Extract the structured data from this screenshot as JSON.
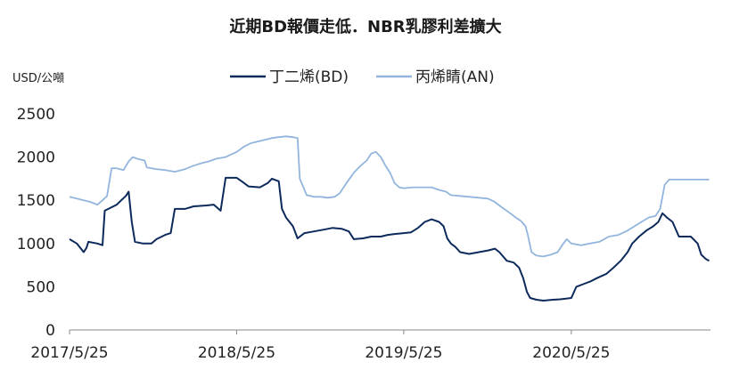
{
  "chart_data": {
    "type": "line",
    "title": "近期BD報價走低．NBR乳膠利差擴大",
    "ylabel": "USD/公噸",
    "ylim": [
      0,
      2500
    ],
    "yticks": [
      "2500",
      "2000",
      "1500",
      "1000",
      "500",
      "0"
    ],
    "xticks": [
      "2017/5/25",
      "2018/5/25",
      "2019/5/25",
      "2020/5/25"
    ],
    "xrange": [
      "2017/5/25",
      "2021/3/25"
    ],
    "legend_position": "top-center",
    "grid": false,
    "series": [
      {
        "name": "丁二烯(BD)",
        "color": "#0d2a5c",
        "points": [
          [
            "2017/5/25",
            1050
          ],
          [
            "2017/6/10",
            1000
          ],
          [
            "2017/6/25",
            900
          ],
          [
            "2017/7/1",
            950
          ],
          [
            "2017/7/5",
            1020
          ],
          [
            "2017/7/25",
            1000
          ],
          [
            "2017/8/5",
            980
          ],
          [
            "2017/8/10",
            1380
          ],
          [
            "2017/8/25",
            1420
          ],
          [
            "2017/9/5",
            1450
          ],
          [
            "2017/9/15",
            1500
          ],
          [
            "2017/9/25",
            1550
          ],
          [
            "2017/10/1",
            1600
          ],
          [
            "2017/10/8",
            1250
          ],
          [
            "2017/10/15",
            1020
          ],
          [
            "2017/11/1",
            1000
          ],
          [
            "2017/11/20",
            1000
          ],
          [
            "2017/12/1",
            1050
          ],
          [
            "2017/12/20",
            1100
          ],
          [
            "2018/1/1",
            1120
          ],
          [
            "2018/1/10",
            1400
          ],
          [
            "2018/2/1",
            1400
          ],
          [
            "2018/2/20",
            1430
          ],
          [
            "2018/3/20",
            1440
          ],
          [
            "2018/4/5",
            1450
          ],
          [
            "2018/4/20",
            1380
          ],
          [
            "2018/5/1",
            1760
          ],
          [
            "2018/5/25",
            1760
          ],
          [
            "2018/6/5",
            1720
          ],
          [
            "2018/6/20",
            1660
          ],
          [
            "2018/7/15",
            1650
          ],
          [
            "2018/8/1",
            1700
          ],
          [
            "2018/8/10",
            1750
          ],
          [
            "2018/8/25",
            1720
          ],
          [
            "2018/9/1",
            1400
          ],
          [
            "2018/9/10",
            1300
          ],
          [
            "2018/9/25",
            1200
          ],
          [
            "2018/10/5",
            1060
          ],
          [
            "2018/10/20",
            1120
          ],
          [
            "2018/11/10",
            1140
          ],
          [
            "2018/12/1",
            1160
          ],
          [
            "2018/12/20",
            1180
          ],
          [
            "2019/1/10",
            1170
          ],
          [
            "2019/1/25",
            1140
          ],
          [
            "2019/2/5",
            1050
          ],
          [
            "2019/2/25",
            1060
          ],
          [
            "2019/3/15",
            1080
          ],
          [
            "2019/4/5",
            1080
          ],
          [
            "2019/4/20",
            1100
          ],
          [
            "2019/5/5",
            1110
          ],
          [
            "2019/5/25",
            1120
          ],
          [
            "2019/6/10",
            1130
          ],
          [
            "2019/6/25",
            1180
          ],
          [
            "2019/7/10",
            1250
          ],
          [
            "2019/7/25",
            1280
          ],
          [
            "2019/8/10",
            1250
          ],
          [
            "2019/8/20",
            1200
          ],
          [
            "2019/8/28",
            1060
          ],
          [
            "2019/9/5",
            1000
          ],
          [
            "2019/9/15",
            960
          ],
          [
            "2019/9/25",
            900
          ],
          [
            "2019/10/15",
            880
          ],
          [
            "2019/11/5",
            900
          ],
          [
            "2019/11/25",
            920
          ],
          [
            "2019/12/10",
            940
          ],
          [
            "2019/12/20",
            900
          ],
          [
            "2020/1/5",
            800
          ],
          [
            "2020/1/20",
            780
          ],
          [
            "2020/2/1",
            720
          ],
          [
            "2020/2/10",
            600
          ],
          [
            "2020/2/18",
            440
          ],
          [
            "2020/2/25",
            370
          ],
          [
            "2020/3/10",
            350
          ],
          [
            "2020/3/25",
            340
          ],
          [
            "2020/4/15",
            350
          ],
          [
            "2020/5/1",
            355
          ],
          [
            "2020/5/25",
            370
          ],
          [
            "2020/6/5",
            500
          ],
          [
            "2020/6/20",
            530
          ],
          [
            "2020/7/5",
            560
          ],
          [
            "2020/7/20",
            600
          ],
          [
            "2020/8/10",
            650
          ],
          [
            "2020/8/25",
            720
          ],
          [
            "2020/9/10",
            800
          ],
          [
            "2020/9/25",
            900
          ],
          [
            "2020/10/5",
            1000
          ],
          [
            "2020/10/20",
            1080
          ],
          [
            "2020/11/5",
            1150
          ],
          [
            "2020/11/20",
            1200
          ],
          [
            "2020/12/1",
            1250
          ],
          [
            "2020/12/10",
            1350
          ],
          [
            "2020/12/20",
            1300
          ],
          [
            "2021/1/1",
            1250
          ],
          [
            "2021/1/15",
            1080
          ],
          [
            "2021/2/10",
            1080
          ],
          [
            "2021/2/25",
            1000
          ],
          [
            "2021/3/5",
            870
          ],
          [
            "2021/3/15",
            820
          ],
          [
            "2021/3/22",
            800
          ]
        ]
      },
      {
        "name": "丙烯睛(AN)",
        "color": "#93b5dd",
        "points": [
          [
            "2017/5/25",
            1540
          ],
          [
            "2017/6/10",
            1520
          ],
          [
            "2017/6/25",
            1500
          ],
          [
            "2017/7/10",
            1480
          ],
          [
            "2017/7/25",
            1450
          ],
          [
            "2017/8/5",
            1500
          ],
          [
            "2017/8/15",
            1550
          ],
          [
            "2017/8/25",
            1870
          ],
          [
            "2017/9/5",
            1870
          ],
          [
            "2017/9/20",
            1850
          ],
          [
            "2017/10/1",
            1950
          ],
          [
            "2017/10/10",
            2000
          ],
          [
            "2017/10/20",
            1980
          ],
          [
            "2017/11/5",
            1960
          ],
          [
            "2017/11/10",
            1880
          ],
          [
            "2017/12/1",
            1860
          ],
          [
            "2017/12/20",
            1850
          ],
          [
            "2018/1/10",
            1830
          ],
          [
            "2018/2/1",
            1860
          ],
          [
            "2018/2/20",
            1900
          ],
          [
            "2018/3/10",
            1930
          ],
          [
            "2018/3/25",
            1950
          ],
          [
            "2018/4/10",
            1980
          ],
          [
            "2018/5/1",
            2000
          ],
          [
            "2018/5/25",
            2060
          ],
          [
            "2018/6/10",
            2120
          ],
          [
            "2018/6/25",
            2160
          ],
          [
            "2018/7/10",
            2180
          ],
          [
            "2018/7/25",
            2200
          ],
          [
            "2018/8/10",
            2220
          ],
          [
            "2018/8/25",
            2230
          ],
          [
            "2018/9/10",
            2240
          ],
          [
            "2018/9/25",
            2230
          ],
          [
            "2018/10/5",
            2220
          ],
          [
            "2018/10/10",
            1750
          ],
          [
            "2018/10/25",
            1560
          ],
          [
            "2018/11/10",
            1540
          ],
          [
            "2018/11/25",
            1540
          ],
          [
            "2018/12/10",
            1530
          ],
          [
            "2018/12/25",
            1540
          ],
          [
            "2019/1/5",
            1580
          ],
          [
            "2019/1/20",
            1700
          ],
          [
            "2019/2/5",
            1820
          ],
          [
            "2019/2/20",
            1900
          ],
          [
            "2019/3/5",
            1960
          ],
          [
            "2019/3/15",
            2040
          ],
          [
            "2019/3/25",
            2060
          ],
          [
            "2019/4/5",
            2000
          ],
          [
            "2019/4/15",
            1900
          ],
          [
            "2019/4/25",
            1820
          ],
          [
            "2019/5/5",
            1700
          ],
          [
            "2019/5/15",
            1650
          ],
          [
            "2019/5/25",
            1640
          ],
          [
            "2019/6/15",
            1650
          ],
          [
            "2019/7/5",
            1650
          ],
          [
            "2019/7/25",
            1650
          ],
          [
            "2019/8/10",
            1620
          ],
          [
            "2019/8/25",
            1600
          ],
          [
            "2019/9/5",
            1560
          ],
          [
            "2019/9/25",
            1550
          ],
          [
            "2019/10/15",
            1540
          ],
          [
            "2019/11/5",
            1530
          ],
          [
            "2019/11/25",
            1520
          ],
          [
            "2019/12/10",
            1480
          ],
          [
            "2019/12/25",
            1420
          ],
          [
            "2020/1/10",
            1360
          ],
          [
            "2020/1/25",
            1300
          ],
          [
            "2020/2/5",
            1260
          ],
          [
            "2020/2/15",
            1200
          ],
          [
            "2020/2/20",
            1100
          ],
          [
            "2020/2/28",
            900
          ],
          [
            "2020/3/10",
            860
          ],
          [
            "2020/3/25",
            850
          ],
          [
            "2020/4/10",
            870
          ],
          [
            "2020/4/25",
            900
          ],
          [
            "2020/5/5",
            980
          ],
          [
            "2020/5/15",
            1050
          ],
          [
            "2020/5/25",
            1000
          ],
          [
            "2020/6/15",
            980
          ],
          [
            "2020/7/5",
            1000
          ],
          [
            "2020/7/25",
            1020
          ],
          [
            "2020/8/15",
            1080
          ],
          [
            "2020/9/5",
            1100
          ],
          [
            "2020/9/25",
            1150
          ],
          [
            "2020/10/10",
            1200
          ],
          [
            "2020/10/25",
            1250
          ],
          [
            "2020/11/10",
            1300
          ],
          [
            "2020/11/25",
            1320
          ],
          [
            "2020/12/5",
            1400
          ],
          [
            "2020/12/15",
            1680
          ],
          [
            "2020/12/25",
            1740
          ],
          [
            "2021/1/15",
            1740
          ],
          [
            "2021/2/15",
            1740
          ],
          [
            "2021/3/22",
            1740
          ]
        ]
      }
    ]
  }
}
